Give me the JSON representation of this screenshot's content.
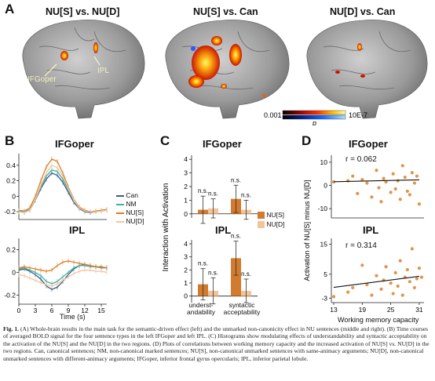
{
  "panel_a": {
    "letter": "A",
    "titles": [
      "NU[S] vs. NU[D]",
      "NU[S] vs. Can",
      "NU[D] vs. Can"
    ],
    "labels": {
      "ifgoper": "IFGoper",
      "ipl": "IPL"
    },
    "colorbar": {
      "min": "0.001",
      "max": "10E-7",
      "label": "p"
    }
  },
  "panel_b": {
    "letter": "B",
    "top_title": "IFGoper",
    "bottom_title": "IPL",
    "xlabel": "Time (s)",
    "legend": [
      "Can",
      "NM",
      "NU[S]",
      "NU[D]"
    ]
  },
  "panel_c": {
    "letter": "C",
    "top_title": "IFGoper",
    "bottom_title": "IPL",
    "ylabel": "Interaction with Activation",
    "ns": "n.s.",
    "legend": [
      "NU[S]",
      "NU[D]"
    ],
    "xcat1": [
      "underst-",
      "andability"
    ],
    "xcat2": [
      "syntactic",
      "acceptability"
    ]
  },
  "panel_d": {
    "letter": "D",
    "top_title": "IFGoper",
    "bottom_title": "IPL",
    "r_top": "r = 0.062",
    "r_bottom": "r = 0.314",
    "ylabel": "Activation of NU[S] minus NU[D]",
    "xlabel": "Working memory capacity"
  },
  "colors": {
    "can": "#3d5a8a",
    "nm": "#3bb3a0",
    "nus": "#e07b1f",
    "nud": "#f2c49c",
    "bar_dark": "#d27a2d",
    "bar_light": "#f2c49a",
    "dot": "#e0954a"
  },
  "caption": {
    "head": "Fig. 1.",
    "text": "(A) Whole-brain results in the main task for the semantic-driven effect (left) and the unmarked non-canonicity effect in NU sentences (middle and right). (B) Time courses of averaged BOLD signal for the four sentence types in the left IFGoper and left IPL. (C) Histograms show modulating effects of understandability and syntactic acceptability on the activation of the NU[S] and the NU[D] in the two regions. (D) Plots of correlations between working memory capacity and the increased activation of NU[S] vs. NU[D] in the two regions. Can, canonical sentences; NM, non-canonical marked sentences; NU[S], non-canonical unmarked sentences with same-animacy arguments; NU[D], non-canonical unmarked sentences with different-animacy arguments; IFGoper, inferior frontal gyrus opercularis; IPL, inferior parietal lobule."
  },
  "chart_data": [
    {
      "type": "line",
      "title": "IFGoper",
      "xlabel": "Time (s)",
      "x_ticks": [
        0,
        3,
        6,
        9,
        12,
        15
      ],
      "y_ticks": [
        -0.2,
        0,
        0.2,
        0.4
      ],
      "x": [
        0,
        1,
        2,
        3,
        4,
        5,
        6,
        7,
        8,
        9,
        10,
        11,
        12,
        13,
        14,
        15,
        16
      ],
      "ylim": [
        -0.3,
        0.55
      ],
      "series": [
        {
          "name": "Can",
          "values": [
            -0.2,
            -0.21,
            -0.18,
            -0.05,
            0.1,
            0.22,
            0.3,
            0.27,
            0.18,
            0.05,
            -0.08,
            -0.16,
            -0.2,
            -0.21,
            -0.2,
            -0.19,
            -0.18
          ]
        },
        {
          "name": "NM",
          "values": [
            -0.19,
            -0.2,
            -0.17,
            -0.04,
            0.12,
            0.26,
            0.34,
            0.32,
            0.22,
            0.08,
            -0.06,
            -0.15,
            -0.19,
            -0.2,
            -0.2,
            -0.19,
            -0.18
          ]
        },
        {
          "name": "NU[S]",
          "values": [
            -0.18,
            -0.19,
            -0.15,
            0.0,
            0.2,
            0.38,
            0.48,
            0.45,
            0.3,
            0.12,
            -0.04,
            -0.14,
            -0.18,
            -0.2,
            -0.19,
            -0.18,
            -0.17
          ]
        },
        {
          "name": "NU[D]",
          "values": [
            -0.2,
            -0.21,
            -0.18,
            -0.04,
            0.14,
            0.3,
            0.4,
            0.37,
            0.26,
            0.1,
            -0.05,
            -0.15,
            -0.19,
            -0.2,
            -0.2,
            -0.19,
            -0.18
          ]
        }
      ]
    },
    {
      "type": "line",
      "title": "IPL",
      "xlabel": "Time (s)",
      "x_ticks": [
        0,
        3,
        6,
        9,
        12,
        15
      ],
      "y_ticks": [
        -0.2,
        0,
        0.2
      ],
      "x": [
        0,
        1,
        2,
        3,
        4,
        5,
        6,
        7,
        8,
        9,
        10,
        11,
        12,
        13,
        14,
        15,
        16
      ],
      "ylim": [
        -0.28,
        0.3
      ],
      "series": [
        {
          "name": "Can",
          "values": [
            0.02,
            0.03,
            0.01,
            -0.02,
            -0.06,
            -0.12,
            -0.15,
            -0.13,
            -0.08,
            -0.02,
            0.03,
            0.06,
            0.07,
            0.06,
            0.05,
            0.04,
            0.04
          ]
        },
        {
          "name": "NM",
          "values": [
            0.03,
            0.04,
            0.02,
            0.0,
            -0.03,
            -0.08,
            -0.1,
            -0.08,
            -0.04,
            0.0,
            0.04,
            0.06,
            0.06,
            0.05,
            0.05,
            0.04,
            0.04
          ]
        },
        {
          "name": "NU[S]",
          "values": [
            0.04,
            0.05,
            0.04,
            0.03,
            0.02,
            0.01,
            0.02,
            0.06,
            0.09,
            0.1,
            0.09,
            0.08,
            0.07,
            0.06,
            0.05,
            0.05,
            0.04
          ]
        },
        {
          "name": "NU[D]",
          "values": [
            -0.02,
            -0.03,
            -0.05,
            -0.07,
            -0.09,
            -0.11,
            -0.12,
            -0.1,
            -0.07,
            -0.04,
            -0.01,
            0.01,
            0.02,
            0.02,
            0.01,
            0.01,
            0.0
          ]
        }
      ]
    },
    {
      "type": "bar",
      "title": "IFGoper",
      "ylabel": "Interaction with Activation",
      "y_ticks": [
        0,
        1,
        2,
        3,
        4
      ],
      "ylim": [
        -0.3,
        4.3
      ],
      "categories": [
        "understandability",
        "syntactic acceptability"
      ],
      "series": [
        {
          "name": "NU[S]",
          "values": [
            0.3,
            1.1
          ],
          "err": [
            1.0,
            1.0
          ]
        },
        {
          "name": "NU[D]",
          "values": [
            0.4,
            0.3
          ],
          "err": [
            0.7,
            0.7
          ]
        }
      ],
      "annotations": [
        "n.s.",
        "n.s.",
        "n.s.",
        "n.s."
      ]
    },
    {
      "type": "bar",
      "title": "IPL",
      "y_ticks": [
        0,
        1,
        2,
        3,
        4
      ],
      "ylim": [
        -0.5,
        4.3
      ],
      "categories": [
        "understandability",
        "syntactic acceptability"
      ],
      "series": [
        {
          "name": "NU[S]",
          "values": [
            0.9,
            2.9
          ],
          "err": [
            1.2,
            1.3
          ]
        },
        {
          "name": "NU[D]",
          "values": [
            0.4,
            0.4
          ],
          "err": [
            1.0,
            0.9
          ]
        }
      ],
      "annotations": [
        "n.s.",
        "n.s.",
        "n.s.",
        "n.s."
      ]
    },
    {
      "type": "scatter",
      "title": "IFGoper",
      "annotation": "r = 0.062",
      "y_ticks": [
        -10,
        0,
        10
      ],
      "ylim": [
        -14,
        13
      ],
      "xlim": [
        12.5,
        32
      ],
      "points": [
        [
          13,
          1.5
        ],
        [
          16,
          2.0
        ],
        [
          17,
          4.0
        ],
        [
          18,
          -3.5
        ],
        [
          19,
          2.5
        ],
        [
          20,
          1.0
        ],
        [
          21,
          -5.0
        ],
        [
          22,
          6.5
        ],
        [
          22.5,
          -1.0
        ],
        [
          23,
          -7.0
        ],
        [
          23.5,
          3.0
        ],
        [
          24,
          1.5
        ],
        [
          25,
          -3.0
        ],
        [
          25.5,
          5.0
        ],
        [
          26,
          -1.5
        ],
        [
          26.5,
          2.0
        ],
        [
          27,
          -6.0
        ],
        [
          27.5,
          8.5
        ],
        [
          28,
          3.5
        ],
        [
          28.5,
          -2.5
        ],
        [
          29,
          -4.0
        ],
        [
          29.5,
          5.5
        ],
        [
          30,
          1.0
        ],
        [
          30.5,
          4.0
        ],
        [
          31,
          -8.0
        ]
      ],
      "fit": [
        [
          13,
          1.6
        ],
        [
          31,
          2.4
        ]
      ]
    },
    {
      "type": "scatter",
      "title": "IPL",
      "annotation": "r = 0.314",
      "xlabel": "Working memory capacity",
      "x_ticks": [
        13,
        19,
        25,
        31
      ],
      "y_ticks": [
        -3,
        5,
        15
      ],
      "ylim": [
        -4.5,
        17
      ],
      "xlim": [
        12.5,
        32
      ],
      "points": [
        [
          13,
          -2.5
        ],
        [
          16,
          -1.0
        ],
        [
          17,
          0.5
        ],
        [
          19,
          8.0
        ],
        [
          20,
          1.5
        ],
        [
          21,
          -2.0
        ],
        [
          22,
          4.5
        ],
        [
          23,
          0.0
        ],
        [
          23.5,
          3.0
        ],
        [
          24,
          7.5
        ],
        [
          25,
          2.0
        ],
        [
          25.5,
          -1.5
        ],
        [
          26,
          5.5
        ],
        [
          26.5,
          1.0
        ],
        [
          27,
          9.5
        ],
        [
          27.5,
          -2.0
        ],
        [
          28,
          4.0
        ],
        [
          28.5,
          6.5
        ],
        [
          29,
          2.5
        ],
        [
          29.5,
          13.5
        ],
        [
          30,
          0.5
        ],
        [
          30.5,
          3.5
        ],
        [
          31,
          7.0
        ],
        [
          31.5,
          4.0
        ]
      ],
      "fit": [
        [
          13,
          0.6
        ],
        [
          31,
          4.3
        ]
      ]
    }
  ]
}
